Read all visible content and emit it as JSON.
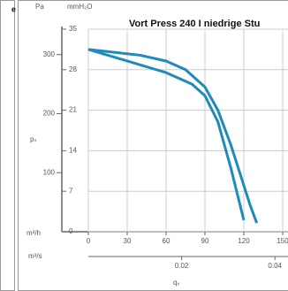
{
  "side_text": "e",
  "chart_data": {
    "type": "line",
    "title": "Vort Press 240 I niedrige Stu",
    "y_unit": "mmH₂O",
    "y2_unit": "Pa",
    "y_label": "pₛ",
    "x_unit": "m³/h",
    "x2_unit": "m³/s",
    "x_label": "qᵥ",
    "ylim": [
      0,
      35
    ],
    "yticks": [
      0,
      7,
      14,
      21,
      28,
      35
    ],
    "y2lim": [
      0,
      343
    ],
    "y2ticks": [
      100,
      200,
      300
    ],
    "xlim": [
      0,
      150
    ],
    "xticks": [
      0,
      30,
      60,
      90,
      120,
      150
    ],
    "x2lim": [
      0,
      0.04167
    ],
    "x2ticks": [
      0.02,
      0.04
    ],
    "grid": true,
    "series": [
      {
        "color": "#1e8bb8",
        "x": [
          0,
          20,
          40,
          60,
          75,
          90,
          100,
          110,
          120,
          125,
          130
        ],
        "values": [
          31.5,
          31,
          30.5,
          29.5,
          28,
          25,
          21,
          15,
          8,
          4.5,
          1.5
        ]
      },
      {
        "color": "#1e8bb8",
        "x": [
          0,
          30,
          60,
          80,
          90,
          100,
          105,
          110,
          115,
          120
        ],
        "values": [
          31.5,
          29.5,
          27.5,
          25.5,
          23.5,
          19,
          15,
          11,
          6.5,
          2
        ]
      }
    ]
  }
}
